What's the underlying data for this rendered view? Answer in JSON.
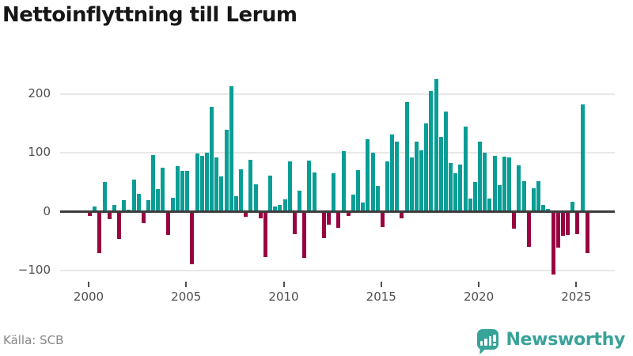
{
  "title": "Nettoinflyttning till Lerum",
  "source": "Källa: SCB",
  "footer": {
    "brand_name": "Newsworthy"
  },
  "colors": {
    "positive": "#089d95",
    "negative": "#980340",
    "grid": "#e8e8e8",
    "zero_line": "#3c3c3c",
    "axis_text": "#4f4f4f",
    "source_text": "#878787",
    "brand": "#38a398",
    "title": "#161616"
  },
  "chart_data": {
    "type": "bar",
    "title": "Nettoinflyttning till Lerum",
    "xlabel": "",
    "ylabel": "",
    "frequency": "quarterly",
    "start_year": 2000,
    "start_quarter": 1,
    "values": [
      -5,
      9,
      -69,
      51,
      -11,
      12,
      -45,
      20,
      3,
      55,
      30,
      -18,
      19,
      97,
      39,
      75,
      -38,
      23,
      78,
      69,
      70,
      -87,
      99,
      95,
      100,
      179,
      93,
      60,
      140,
      214,
      27,
      72,
      -6,
      89,
      47,
      -9,
      -75,
      62,
      9,
      12,
      21,
      86,
      -36,
      36,
      -77,
      87,
      67,
      2,
      -43,
      -20,
      66,
      -26,
      103,
      -5,
      29,
      71,
      15,
      123,
      100,
      44,
      -24,
      85,
      131,
      119,
      -10,
      187,
      92,
      119,
      105,
      150,
      206,
      226,
      127,
      170,
      83,
      65,
      80,
      145,
      22,
      51,
      119,
      100,
      22,
      95,
      45,
      94,
      92,
      -27,
      79,
      52,
      -58,
      40,
      52,
      12,
      5,
      -105,
      -59,
      -39,
      -37,
      17,
      -36,
      183,
      -68
    ],
    "xticks": [
      2000,
      2005,
      2010,
      2015,
      2020,
      2025
    ],
    "xtick_labels": [
      "2000",
      "2005",
      "2010",
      "2015",
      "2020",
      "2025"
    ],
    "yticks": [
      200,
      100,
      0,
      -100
    ],
    "ytick_labels": [
      "200",
      "100",
      "0",
      "−100"
    ],
    "ylim": [
      -130,
      245
    ],
    "grid": "horizontal",
    "legend": "none",
    "bar_color_positive": "#089d95",
    "bar_color_negative": "#980340"
  }
}
